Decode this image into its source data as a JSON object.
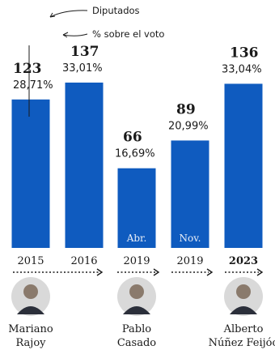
{
  "chart_data": {
    "type": "bar",
    "categories": [
      "2015",
      "2016",
      "2019",
      "2019",
      "2023"
    ],
    "values": [
      123,
      137,
      66,
      89,
      136
    ],
    "percent_labels": [
      "28,71%",
      "33,01%",
      "16,69%",
      "20,99%",
      "33,04%"
    ],
    "bar_sublabels": [
      "",
      "",
      "Abr.",
      "Nov.",
      ""
    ],
    "bold_category_index": 4,
    "annotations": {
      "seats": "Diputados",
      "percent": "% sobre el voto"
    },
    "leaders": [
      {
        "line1": "Mariano",
        "line2": "Rajoy",
        "under_index": 0
      },
      {
        "line1": "Pablo",
        "line2": "Casado",
        "under_index": 2
      },
      {
        "line1": "Alberto",
        "line2": "Núñez Feijóo",
        "under_index": 4
      }
    ],
    "bar_color": "#0f5bbf",
    "ylim": [
      0,
      145
    ]
  }
}
